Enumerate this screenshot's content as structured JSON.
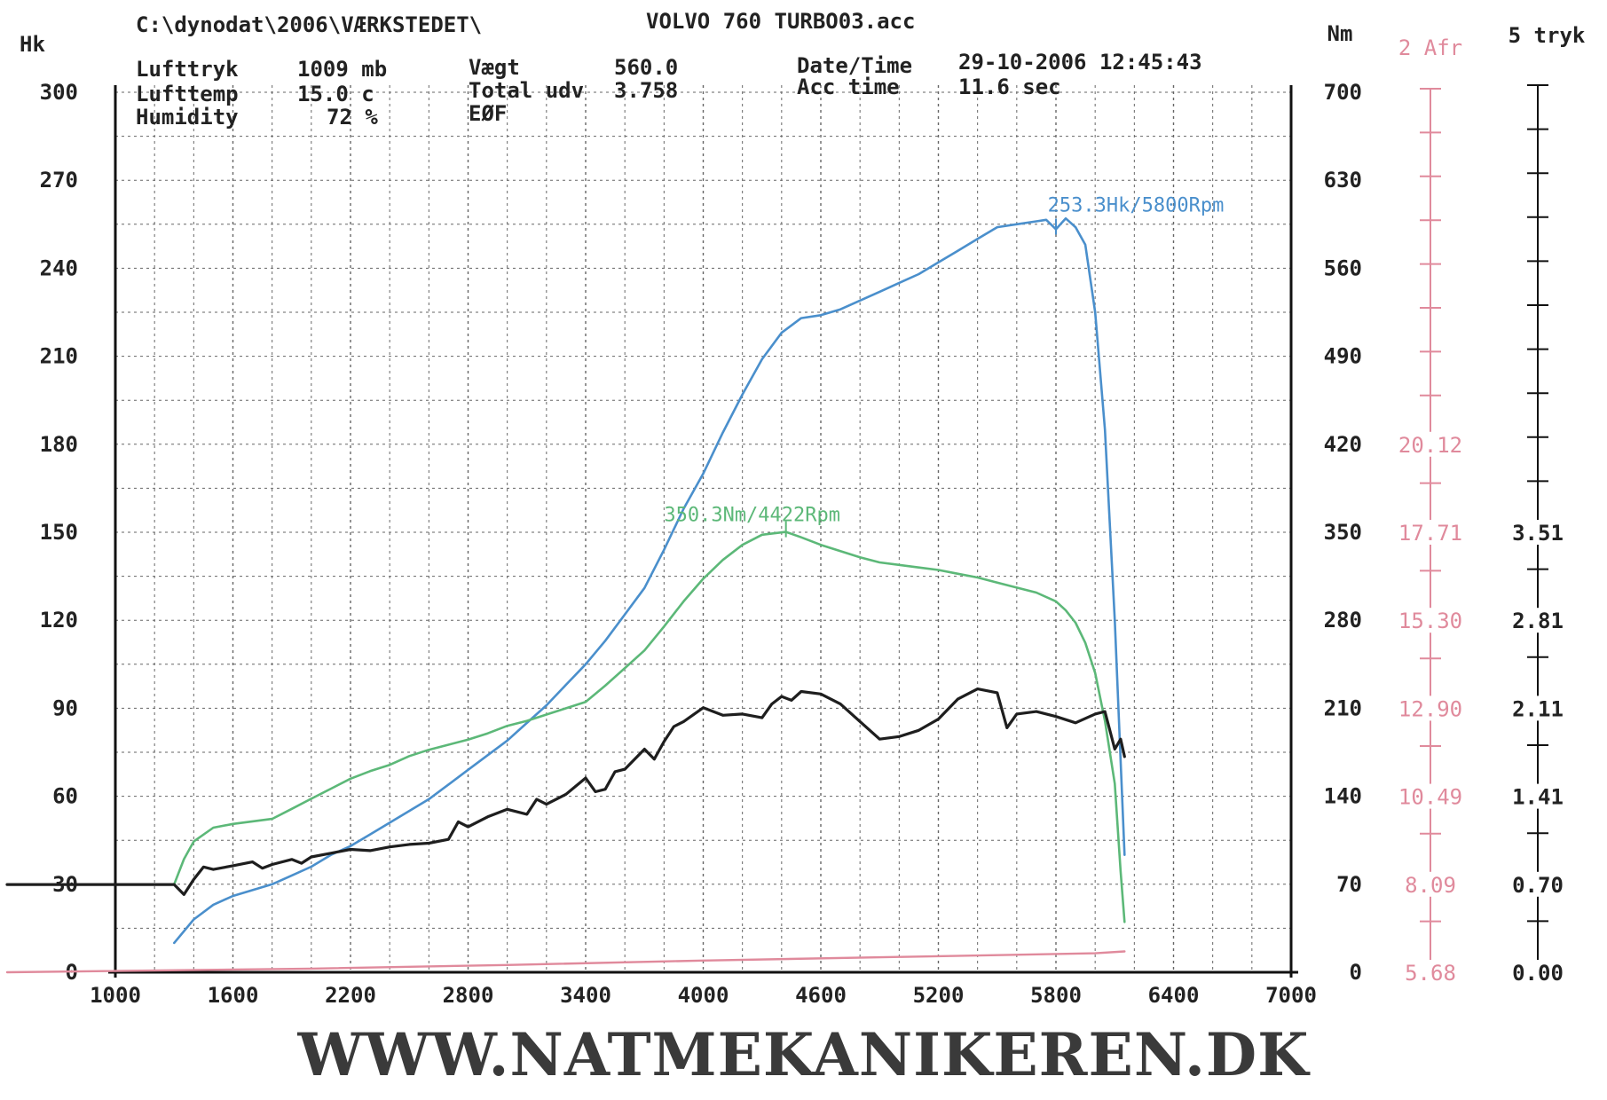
{
  "header": {
    "path": "C:\\dynodat\\2006\\VÆRKSTEDET\\",
    "file": "VOLVO 760 TURBO03.acc",
    "lufttryk_label": "Lufttryk",
    "lufttryk_value": "1009 mb",
    "lufttemp_label": "Lufttemp",
    "lufttemp_value": "15.0 c",
    "humidity_label": "Humidity",
    "humidity_value": "72 %",
    "vaegt_label": "Vægt",
    "vaegt_value": "560.0",
    "total_label": "Total udv",
    "total_value": "3.758",
    "eof_label": "EØF",
    "datetime_label": "Date/Time",
    "datetime_value": "29-10-2006 12:45:43",
    "acctime_label": "Acc time",
    "acctime_value": "11.6 sec"
  },
  "footer": {
    "text": "WWW.NATMEKANIKEREN.DK"
  },
  "colors": {
    "hk": "#4a8fcc",
    "nm": "#5cb878",
    "afr": "#e08a9c",
    "tryk": "#1e1e1e",
    "grid": "#666666"
  },
  "chart_data": {
    "type": "line",
    "x_axis": {
      "ticks": [
        1000,
        1600,
        2200,
        2800,
        3400,
        4000,
        4600,
        5200,
        5800,
        6400,
        7000
      ],
      "range": [
        1000,
        7000
      ]
    },
    "axes": {
      "hk": {
        "label": "Hk",
        "ticks": [
          "0",
          "30",
          "60",
          "90",
          "120",
          "150",
          "180",
          "210",
          "240",
          "270",
          "300"
        ],
        "range": [
          0,
          300
        ]
      },
      "nm": {
        "label": "Nm",
        "ticks": [
          "0",
          "70",
          "140",
          "210",
          "280",
          "350",
          "420",
          "490",
          "560",
          "630",
          "700"
        ],
        "range": [
          0,
          700
        ]
      },
      "afr": {
        "label": "2 Afr",
        "ticks": [
          "5.68",
          "8.09",
          "10.49",
          "12.90",
          "15.30",
          "17.71",
          "20.12"
        ],
        "range": [
          5.68,
          29.75
        ]
      },
      "tryk": {
        "label": "5 tryk",
        "ticks": [
          "0.00",
          "0.70",
          "1.41",
          "2.11",
          "2.81",
          "3.51"
        ],
        "range": [
          0,
          7.02
        ]
      }
    },
    "series": [
      {
        "name": "Hk",
        "axis": "hk",
        "color": "#4a8fcc",
        "x": [
          1300,
          1400,
          1500,
          1600,
          1700,
          1800,
          1900,
          2000,
          2100,
          2200,
          2300,
          2400,
          2500,
          2600,
          2700,
          2800,
          2900,
          3000,
          3100,
          3200,
          3300,
          3400,
          3500,
          3600,
          3700,
          3800,
          3900,
          4000,
          4100,
          4200,
          4300,
          4400,
          4500,
          4600,
          4700,
          4800,
          4900,
          5000,
          5100,
          5200,
          5300,
          5400,
          5500,
          5600,
          5700,
          5750,
          5800,
          5850,
          5900,
          5950,
          6000,
          6050,
          6100,
          6150
        ],
        "y": [
          10,
          18,
          23,
          26,
          28,
          30,
          33,
          36,
          40,
          43,
          47,
          51,
          55,
          59,
          64,
          69,
          74,
          79,
          85,
          91,
          98,
          105,
          113,
          122,
          131,
          144,
          158,
          170,
          184,
          197,
          209,
          218,
          223,
          224,
          226,
          229,
          232,
          235,
          238,
          242,
          246,
          250,
          254,
          255,
          256,
          256.5,
          253.3,
          257,
          254,
          248,
          225,
          185,
          120,
          40
        ]
      },
      {
        "name": "Nm",
        "axis": "nm",
        "color": "#5cb878",
        "x": [
          1300,
          1350,
          1400,
          1500,
          1600,
          1700,
          1800,
          1900,
          2000,
          2100,
          2200,
          2300,
          2400,
          2500,
          2600,
          2700,
          2800,
          2900,
          3000,
          3100,
          3200,
          3300,
          3400,
          3500,
          3600,
          3700,
          3800,
          3900,
          4000,
          4100,
          4200,
          4300,
          4422,
          4500,
          4600,
          4700,
          4800,
          4900,
          5000,
          5100,
          5200,
          5300,
          5400,
          5500,
          5600,
          5700,
          5800,
          5850,
          5900,
          5950,
          6000,
          6050,
          6100,
          6130,
          6150
        ],
        "y": [
          70,
          90,
          104,
          115,
          118,
          120,
          122,
          130,
          138,
          146,
          154,
          160,
          165,
          172,
          177,
          181,
          185,
          190,
          196,
          200,
          205,
          210,
          215,
          228,
          242,
          256,
          275,
          295,
          313,
          328,
          340,
          348,
          350.3,
          346,
          340,
          335,
          330,
          326,
          324,
          322,
          320,
          317,
          314,
          310,
          306,
          302,
          295,
          288,
          278,
          262,
          238,
          200,
          150,
          80,
          40
        ]
      },
      {
        "name": "tryk",
        "axis": "tryk",
        "color": "#1e1e1e",
        "x": [
          1000,
          1300,
          1350,
          1400,
          1450,
          1500,
          1600,
          1700,
          1750,
          1800,
          1900,
          1950,
          2000,
          2100,
          2200,
          2300,
          2400,
          2500,
          2600,
          2700,
          2750,
          2800,
          2900,
          3000,
          3100,
          3150,
          3200,
          3300,
          3400,
          3450,
          3500,
          3550,
          3600,
          3700,
          3750,
          3800,
          3850,
          3900,
          4000,
          4100,
          4200,
          4300,
          4350,
          4400,
          4450,
          4500,
          4600,
          4700,
          4800,
          4900,
          5000,
          5100,
          5200,
          5300,
          5400,
          5500,
          5550,
          5600,
          5700,
          5800,
          5900,
          6000,
          6050,
          6100,
          6130,
          6150
        ],
        "y": [
          0.7,
          0.7,
          0.62,
          0.74,
          0.84,
          0.82,
          0.85,
          0.88,
          0.83,
          0.86,
          0.9,
          0.87,
          0.92,
          0.95,
          0.98,
          0.97,
          1.0,
          1.02,
          1.03,
          1.06,
          1.2,
          1.16,
          1.24,
          1.3,
          1.26,
          1.38,
          1.34,
          1.42,
          1.55,
          1.44,
          1.46,
          1.6,
          1.62,
          1.78,
          1.7,
          1.84,
          1.96,
          2.0,
          2.11,
          2.05,
          2.06,
          2.03,
          2.14,
          2.2,
          2.17,
          2.24,
          2.22,
          2.14,
          2.0,
          1.86,
          1.88,
          1.93,
          2.02,
          2.18,
          2.26,
          2.23,
          1.95,
          2.06,
          2.08,
          2.04,
          1.99,
          2.06,
          2.08,
          1.78,
          1.86,
          1.72
        ]
      },
      {
        "name": "Afr",
        "axis": "afr",
        "color": "#e08a9c",
        "x": [
          1000,
          2000,
          3000,
          4000,
          5000,
          6000,
          6150
        ],
        "y": [
          5.68,
          5.78,
          5.88,
          6.0,
          6.1,
          6.2,
          6.25
        ]
      }
    ],
    "annotations": [
      {
        "text": "253.3Hk/5800Rpm",
        "x": 5800,
        "y": 253.3,
        "axis": "hk",
        "color": "#4a8fcc"
      },
      {
        "text": "350.3Nm/4422Rpm",
        "x": 4422,
        "y": 350.3,
        "axis": "nm",
        "color": "#5cb878"
      }
    ]
  }
}
